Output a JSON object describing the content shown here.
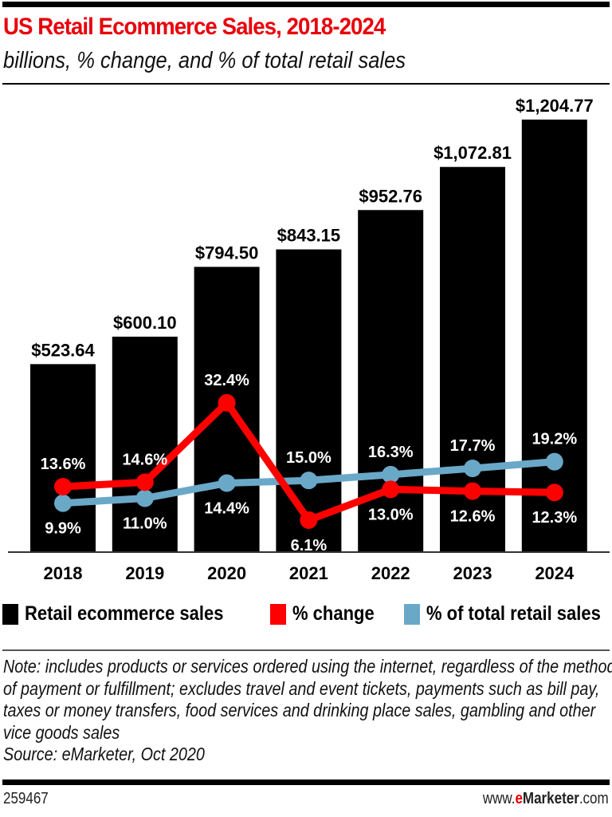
{
  "chart_data": {
    "type": "bar",
    "title": "US Retail Ecommerce Sales, 2018-2024",
    "subtitle": "billions, % change, and % of total retail sales",
    "categories": [
      "2018",
      "2019",
      "2020",
      "2021",
      "2022",
      "2023",
      "2024"
    ],
    "series": [
      {
        "name": "Retail ecommerce sales",
        "type": "bar",
        "color": "#000000",
        "values": [
          523.64,
          600.1,
          794.5,
          843.15,
          952.76,
          1072.81,
          1204.77
        ],
        "labels": [
          "$523.64",
          "$600.10",
          "$794.50",
          "$843.15",
          "$952.76",
          "$1,072.81",
          "$1,204.77"
        ]
      },
      {
        "name": "% change",
        "type": "line",
        "color": "#ff0000",
        "values": [
          13.6,
          14.6,
          32.4,
          6.1,
          13.0,
          12.6,
          12.3
        ],
        "labels": [
          "13.6%",
          "14.6%",
          "32.4%",
          "6.1%",
          "13.0%",
          "12.6%",
          "12.3%"
        ]
      },
      {
        "name": "% of total retail sales",
        "type": "line",
        "color": "#6aa8c8",
        "values": [
          9.9,
          11.0,
          14.4,
          15.0,
          16.3,
          17.7,
          19.2
        ],
        "labels": [
          "9.9%",
          "11.0%",
          "14.4%",
          "15.0%",
          "16.3%",
          "17.7%",
          "19.2%"
        ]
      }
    ],
    "grid": false,
    "legend": "bottom"
  },
  "note": "Note: includes products or services ordered using the internet, regardless of the method of payment or fulfillment; excludes travel and event tickets, payments such as bill pay, taxes or money transfers, food services and drinking place sales, gambling and other vice goods sales",
  "source": "Source: eMarketer, Oct 2020",
  "footer": {
    "id": "259467",
    "url_prefix": "www.",
    "url_e": "e",
    "url_brand": "Marketer",
    "url_suffix": ".com"
  }
}
